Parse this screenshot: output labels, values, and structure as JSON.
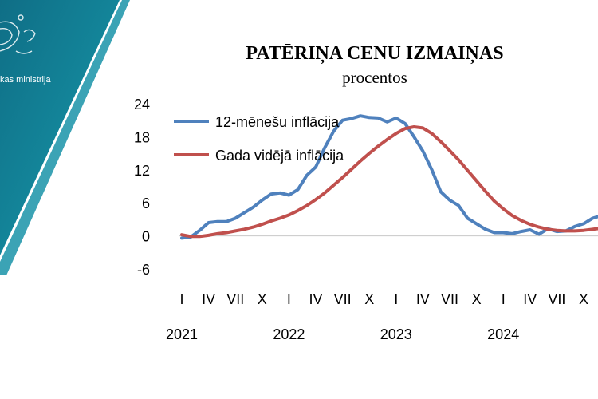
{
  "banner": {
    "ministry_text": "kas ministrija",
    "colors": [
      "#0f6e86",
      "#14899d",
      "#3ba3b5"
    ],
    "emblem": "coat-of-arms-icon"
  },
  "chart_data": {
    "type": "line",
    "title": "PATĒRIŅA CENU IZMAIŅAS",
    "subtitle": "procentos",
    "ylim": [
      -6,
      24
    ],
    "yticks": [
      24,
      18,
      12,
      6,
      0,
      -6
    ],
    "xlim": [
      0,
      49
    ],
    "grid": false,
    "legend_position": "top-left",
    "month_ticks": [
      {
        "x": 0,
        "label": "I"
      },
      {
        "x": 3,
        "label": "IV"
      },
      {
        "x": 6,
        "label": "VII"
      },
      {
        "x": 9,
        "label": "X"
      },
      {
        "x": 12,
        "label": "I"
      },
      {
        "x": 15,
        "label": "IV"
      },
      {
        "x": 18,
        "label": "VII"
      },
      {
        "x": 21,
        "label": "X"
      },
      {
        "x": 24,
        "label": "I"
      },
      {
        "x": 27,
        "label": "IV"
      },
      {
        "x": 30,
        "label": "VII"
      },
      {
        "x": 33,
        "label": "X"
      },
      {
        "x": 36,
        "label": "I"
      },
      {
        "x": 39,
        "label": "IV"
      },
      {
        "x": 42,
        "label": "VII"
      },
      {
        "x": 45,
        "label": "X"
      }
    ],
    "year_ticks": [
      {
        "x": 0,
        "label": "2021"
      },
      {
        "x": 12,
        "label": "2022"
      },
      {
        "x": 24,
        "label": "2023"
      },
      {
        "x": 36,
        "label": "2024"
      }
    ],
    "series": [
      {
        "name": "12-mēnešu inflācija",
        "color": "#4f81bd",
        "values": [
          -0.4,
          -0.2,
          1.0,
          2.4,
          2.6,
          2.6,
          3.2,
          4.2,
          5.2,
          6.5,
          7.6,
          7.8,
          7.4,
          8.4,
          11.0,
          12.5,
          16.0,
          19.0,
          21.0,
          21.3,
          21.8,
          21.5,
          21.4,
          20.7,
          21.4,
          20.4,
          18.0,
          15.4,
          12.0,
          8.0,
          6.5,
          5.5,
          3.2,
          2.2,
          1.2,
          0.6,
          0.6,
          0.4,
          0.8,
          1.1,
          0.3,
          1.3,
          0.8,
          0.9,
          1.7,
          2.2,
          3.2,
          3.7
        ]
      },
      {
        "name": "Gada vidējā inflācija",
        "color": "#c0504d",
        "values": [
          0.2,
          -0.1,
          -0.1,
          0.1,
          0.4,
          0.6,
          0.9,
          1.2,
          1.6,
          2.1,
          2.7,
          3.2,
          3.8,
          4.6,
          5.5,
          6.6,
          7.8,
          9.2,
          10.6,
          12.1,
          13.6,
          15.0,
          16.3,
          17.5,
          18.6,
          19.5,
          19.8,
          19.6,
          18.6,
          17.1,
          15.5,
          13.8,
          11.9,
          10.0,
          8.1,
          6.3,
          4.9,
          3.7,
          2.8,
          2.1,
          1.6,
          1.2,
          1.0,
          0.9,
          0.9,
          1.0,
          1.2,
          1.4
        ]
      }
    ]
  }
}
